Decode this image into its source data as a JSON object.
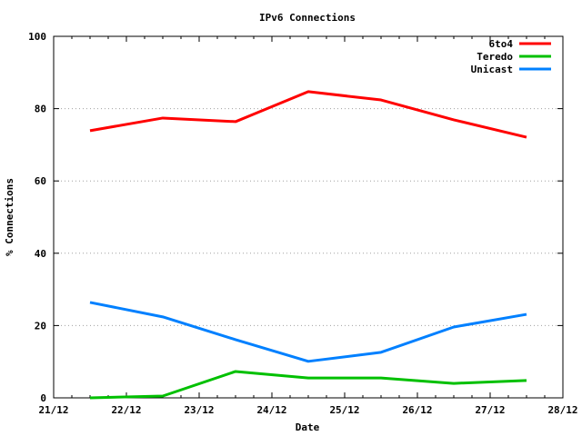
{
  "chart_data": {
    "type": "line",
    "title": "IPv6 Connections",
    "xlabel": "Date",
    "ylabel": "% Connections",
    "x_ticks": [
      "21/12",
      "22/12",
      "23/12",
      "24/12",
      "25/12",
      "26/12",
      "27/12",
      "28/12"
    ],
    "y_ticks": [
      0,
      20,
      40,
      60,
      80,
      100
    ],
    "ylim": [
      0,
      100
    ],
    "xlim": [
      "21/12 00:00",
      "28/12 00:00"
    ],
    "grid": "horizontal dotted",
    "legend_position": "top-right",
    "x": [
      "21/12 12:00",
      "22/12 12:00",
      "23/12 12:00",
      "24/12 12:00",
      "25/12 12:00",
      "26/12 12:00",
      "27/12 12:00"
    ],
    "series": [
      {
        "name": "6to4",
        "color": "#ff0000",
        "values": [
          73.9,
          77.4,
          76.4,
          84.7,
          82.4,
          76.9,
          72.1
        ]
      },
      {
        "name": "Teredo",
        "color": "#00c000",
        "values": [
          0.0,
          0.5,
          7.3,
          5.5,
          5.5,
          4.0,
          4.8
        ]
      },
      {
        "name": "Unicast",
        "color": "#0080ff",
        "values": [
          26.4,
          22.4,
          16.1,
          10.1,
          12.6,
          19.6,
          23.1
        ]
      }
    ]
  }
}
